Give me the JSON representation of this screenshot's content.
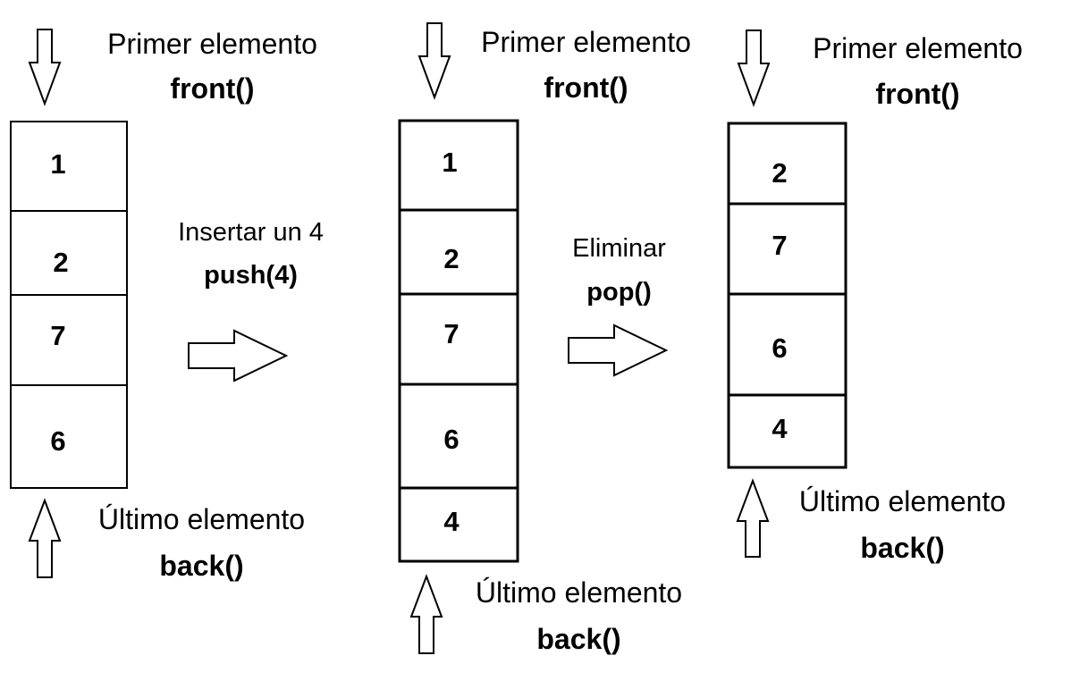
{
  "front_label": "Primer elemento",
  "front_fn": "front()",
  "back_label": "Último elemento",
  "back_fn": "back()",
  "queues": [
    {
      "values": [
        "1",
        "2",
        "7",
        "6"
      ]
    },
    {
      "values": [
        "1",
        "2",
        "7",
        "6",
        "4"
      ]
    },
    {
      "values": [
        "2",
        "7",
        "6",
        "4"
      ]
    }
  ],
  "operations": [
    {
      "label": "Insertar un 4",
      "fn": "push(4)"
    },
    {
      "label": "Eliminar",
      "fn": "pop()"
    }
  ]
}
